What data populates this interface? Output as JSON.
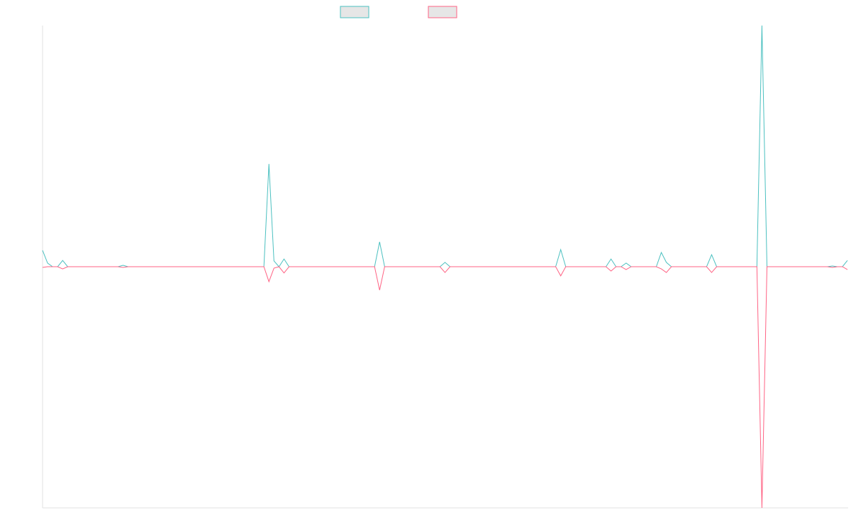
{
  "chart_data": {
    "type": "line",
    "categories": [
      null,
      null,
      null,
      null,
      null,
      null,
      null,
      null,
      null,
      null,
      null,
      null,
      null,
      null,
      null,
      null,
      null,
      null,
      null,
      null,
      null,
      null,
      null,
      null,
      null,
      null,
      null,
      null,
      null,
      null,
      null,
      null,
      null,
      null,
      null,
      null,
      null,
      null,
      null,
      null,
      null,
      null,
      null,
      null,
      null,
      null,
      null,
      null,
      null,
      null,
      null,
      null,
      null,
      null,
      null,
      null,
      null,
      null,
      null,
      null,
      null,
      null,
      null,
      null,
      null,
      null,
      null,
      null,
      null,
      null,
      null,
      null,
      null,
      null,
      null,
      null,
      null,
      null,
      null,
      null,
      null,
      null,
      null,
      null,
      null,
      null,
      null,
      null,
      null,
      null,
      null,
      null,
      null,
      null,
      null,
      null,
      null,
      null,
      null,
      null,
      null,
      null,
      null,
      null,
      null,
      null,
      null,
      null,
      null,
      null,
      null,
      null,
      null,
      null,
      null,
      null,
      null,
      null,
      null,
      null,
      null,
      null,
      null,
      null,
      null,
      null,
      null,
      null,
      null,
      null,
      null,
      null,
      null,
      null,
      null,
      null,
      null,
      null,
      null,
      null,
      null,
      null,
      null,
      null,
      null,
      null,
      null,
      null,
      null,
      null,
      null,
      null,
      null,
      null,
      null,
      null,
      null,
      null,
      null,
      null,
      null
    ],
    "series": [
      {
        "color": "#4bc0c0",
        "values": [
          6.8,
          1.5,
          0,
          0,
          2.6,
          0,
          0,
          0,
          0,
          0,
          0,
          0,
          0,
          0,
          0,
          0,
          0.6,
          0,
          0,
          0,
          0,
          0,
          0,
          0,
          0,
          0,
          0,
          0,
          0,
          0,
          0,
          0,
          0,
          0,
          0,
          0,
          0,
          0,
          0,
          0,
          0,
          0,
          0,
          0,
          0,
          42.6,
          2.4,
          0,
          3.2,
          0,
          0,
          0,
          0,
          0,
          0,
          0,
          0,
          0,
          0,
          0,
          0,
          0,
          0,
          0,
          0,
          0,
          0,
          10.3,
          0,
          0,
          0,
          0,
          0,
          0,
          0,
          0,
          0,
          0,
          0,
          0,
          1.8,
          0,
          0,
          0,
          0,
          0,
          0,
          0,
          0,
          0,
          0,
          0,
          0,
          0,
          0,
          0,
          0,
          0,
          0,
          0,
          0,
          0,
          0,
          7.1,
          0,
          0,
          0,
          0,
          0,
          0,
          0,
          0,
          0,
          3.2,
          0,
          0,
          1.5,
          0,
          0,
          0,
          0,
          0,
          0,
          5.9,
          1.8,
          0,
          0,
          0,
          0,
          0,
          0,
          0,
          0,
          5,
          0,
          0,
          0,
          0,
          0,
          0,
          0,
          0,
          0,
          100,
          0,
          0,
          0,
          0,
          0,
          0,
          0,
          0,
          0,
          0,
          0,
          0,
          0,
          0.3,
          0,
          0,
          2.6
        ]
      },
      {
        "color": "#ff6384",
        "values": [
          -0.3,
          0,
          0,
          0,
          -0.9,
          0,
          0,
          0,
          0,
          0,
          0,
          0,
          0,
          0,
          0,
          0,
          -0.3,
          0,
          0,
          0,
          0,
          0,
          0,
          0,
          0,
          0,
          0,
          0,
          0,
          0,
          0,
          0,
          0,
          0,
          0,
          0,
          0,
          0,
          0,
          0,
          0,
          0,
          0,
          0,
          0,
          -6.2,
          -0.6,
          0,
          -2.6,
          0,
          0,
          0,
          0,
          0,
          0,
          0,
          0,
          0,
          0,
          0,
          0,
          0,
          0,
          0,
          0,
          0,
          0,
          -9.7,
          0,
          0,
          0,
          0,
          0,
          0,
          0,
          0,
          0,
          0,
          0,
          0,
          -2.4,
          0,
          0,
          0,
          0,
          0,
          0,
          0,
          0,
          0,
          0,
          0,
          0,
          0,
          0,
          0,
          0,
          0,
          0,
          0,
          0,
          0,
          0,
          -3.8,
          0,
          0,
          0,
          0,
          0,
          0,
          0,
          0,
          0,
          -1.8,
          0,
          0,
          -1.2,
          0,
          0,
          0,
          0,
          0,
          0,
          -0.9,
          -2.4,
          0,
          0,
          0,
          0,
          0,
          0,
          0,
          0,
          -2.4,
          0,
          0,
          0,
          0,
          0,
          0,
          0,
          0,
          0,
          -100,
          0,
          0,
          0,
          0,
          0,
          0,
          0,
          0,
          0,
          0,
          0,
          0,
          0,
          -0.3,
          0,
          0,
          -1.2
        ]
      }
    ],
    "ylim": [
      -100,
      100
    ]
  }
}
